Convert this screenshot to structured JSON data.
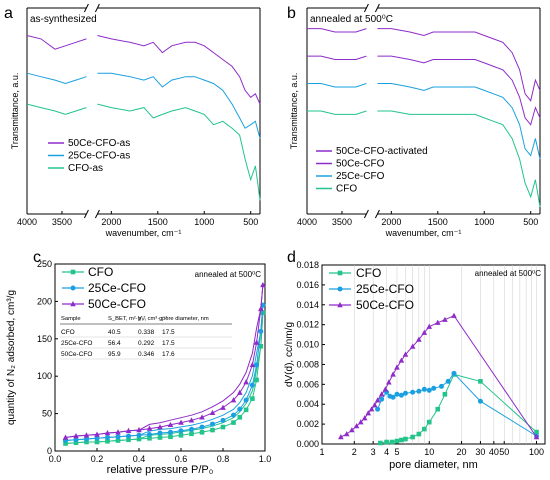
{
  "colors": {
    "purple": "#8e2bc9",
    "blue": "#1aa0e0",
    "green": "#22c48a",
    "axis": "#000000",
    "grid": "#cccccc"
  },
  "panels": [
    {
      "letter": "a",
      "annotation": "as-synthesized",
      "ylabel": "Transmittance, a.u.",
      "xlabel": "wavenumber, cm⁻¹",
      "xticks_left": [
        "4000",
        "3500"
      ],
      "xticks_right": [
        "2000",
        "1500",
        "1000",
        "500"
      ],
      "legend": [
        "50Ce-CFO-as",
        "25Ce-CFO-as",
        "CFO-as"
      ]
    },
    {
      "letter": "b",
      "annotation": "annealed at 500⁰C",
      "ylabel": "Transmittance, a.u.",
      "xlabel": "wavenumber, cm⁻¹",
      "xticks_left": [
        "4000",
        "3500"
      ],
      "xticks_right": [
        "2000",
        "1500",
        "1000",
        "500"
      ],
      "legend": [
        "50Ce-CFO-activated",
        "50Ce-CFO",
        "25Ce-CFO",
        "CFO"
      ]
    },
    {
      "letter": "c",
      "annotation": "annealed at 500⁰C",
      "ylabel": "quantity of N₂ adsorbed, cm³/g",
      "xlabel": "relative pressure P/P₀",
      "xticks": [
        "0.0",
        "0.2",
        "0.4",
        "0.6",
        "0.8",
        "1.0"
      ],
      "yticks": [
        "0",
        "50",
        "100",
        "150",
        "200",
        "250"
      ],
      "legend": [
        "CFO",
        "25Ce-CFO",
        "50Ce-CFO"
      ],
      "table": {
        "header": [
          "Sample",
          "S_BET, m²·g⁻¹",
          "Vₚ, cm³·g⁻¹",
          "pore diameter, nm"
        ],
        "rows": [
          [
            "CFO",
            "40.5",
            "0.338",
            "17.5"
          ],
          [
            "25Ce-CFO",
            "56.4",
            "0.292",
            "17.5"
          ],
          [
            "50Ce-CFO",
            "95.9",
            "0.346",
            "17.6"
          ]
        ]
      }
    },
    {
      "letter": "d",
      "annotation": "annealed at 500⁰C",
      "ylabel": "dV(d), cc/nm/g",
      "xlabel": "pore diameter, nm",
      "xticks": [
        "1",
        "2",
        "3",
        "4",
        "5",
        "10",
        "20",
        "30",
        "40",
        "50",
        "100"
      ],
      "yticks": [
        "0.000",
        "0.002",
        "0.004",
        "0.006",
        "0.008",
        "0.010",
        "0.012",
        "0.014",
        "0.016",
        "0.018"
      ],
      "legend": [
        "CFO",
        "25Ce-CFO",
        "50Ce-CFO"
      ]
    }
  ],
  "chart_data": [
    {
      "type": "line",
      "panel": "a",
      "xlim": [
        4000,
        400
      ],
      "series": [
        {
          "name": "50Ce-CFO-as",
          "color": "#8e2bc9",
          "x": [
            4000,
            3800,
            3600,
            3450,
            3300,
            3150,
            2150,
            2000,
            1800,
            1650,
            1550,
            1450,
            1350,
            1200,
            1100,
            1000,
            900,
            800,
            700,
            620,
            560,
            500,
            450,
            400
          ],
          "y": [
            5.2,
            5.1,
            4.8,
            4.9,
            5.0,
            5.1,
            5.2,
            5.1,
            5.0,
            4.9,
            5.0,
            4.7,
            4.9,
            5.0,
            5.0,
            4.9,
            4.7,
            4.5,
            4.3,
            4.0,
            3.6,
            3.4,
            3.5,
            3.2
          ]
        },
        {
          "name": "25Ce-CFO-as",
          "color": "#1aa0e0",
          "x": [
            4000,
            3800,
            3600,
            3450,
            3300,
            3150,
            2150,
            2000,
            1800,
            1650,
            1550,
            1450,
            1350,
            1200,
            1100,
            1000,
            900,
            800,
            700,
            620,
            560,
            500,
            450,
            400
          ],
          "y": [
            4.1,
            4.0,
            3.9,
            3.8,
            3.9,
            4.0,
            4.1,
            4.1,
            4.0,
            3.9,
            4.0,
            3.7,
            3.9,
            4.0,
            4.0,
            3.9,
            3.8,
            3.6,
            3.2,
            2.8,
            2.5,
            2.6,
            2.7,
            2.2
          ]
        },
        {
          "name": "CFO-as",
          "color": "#22c48a",
          "x": [
            4000,
            3800,
            3600,
            3450,
            3300,
            3150,
            2150,
            2000,
            1800,
            1650,
            1550,
            1450,
            1350,
            1200,
            1100,
            1000,
            900,
            800,
            700,
            620,
            560,
            500,
            450,
            400
          ],
          "y": [
            3.2,
            3.1,
            3.0,
            2.9,
            3.0,
            3.1,
            3.2,
            3.1,
            3.0,
            3.1,
            2.8,
            2.9,
            3.0,
            3.1,
            3.0,
            2.9,
            2.6,
            2.7,
            2.5,
            2.3,
            1.6,
            1.0,
            1.4,
            0.4
          ]
        }
      ]
    },
    {
      "type": "line",
      "panel": "b",
      "xlim": [
        4000,
        400
      ],
      "series": [
        {
          "name": "50Ce-CFO-activated",
          "color": "#8e2bc9",
          "x": [
            4000,
            3800,
            3600,
            3450,
            3300,
            3150,
            2150,
            2000,
            1800,
            1650,
            1550,
            1450,
            1350,
            1200,
            1100,
            1000,
            900,
            800,
            700,
            620,
            560,
            500,
            450,
            400
          ],
          "y": [
            5.4,
            5.4,
            5.3,
            5.3,
            5.3,
            5.4,
            5.4,
            5.4,
            5.3,
            5.2,
            5.3,
            5.3,
            5.3,
            5.3,
            5.3,
            5.2,
            5.1,
            5.0,
            4.7,
            4.2,
            3.5,
            3.3,
            3.9,
            3.6
          ]
        },
        {
          "name": "50Ce-CFO",
          "color": "#8e2bc9",
          "x": [
            4000,
            3800,
            3600,
            3450,
            3300,
            3150,
            2150,
            2000,
            1800,
            1650,
            1550,
            1450,
            1350,
            1200,
            1100,
            1000,
            900,
            800,
            700,
            620,
            560,
            500,
            450,
            400
          ],
          "y": [
            4.6,
            4.6,
            4.5,
            4.5,
            4.5,
            4.6,
            4.6,
            4.6,
            4.5,
            4.4,
            4.5,
            4.5,
            4.5,
            4.5,
            4.5,
            4.4,
            4.3,
            4.2,
            3.9,
            3.4,
            2.8,
            2.6,
            3.1,
            2.8
          ]
        },
        {
          "name": "25Ce-CFO",
          "color": "#1aa0e0",
          "x": [
            4000,
            3800,
            3600,
            3450,
            3300,
            3150,
            2150,
            2000,
            1800,
            1650,
            1550,
            1450,
            1350,
            1200,
            1100,
            1000,
            900,
            800,
            700,
            620,
            560,
            500,
            450,
            400
          ],
          "y": [
            3.8,
            3.8,
            3.7,
            3.7,
            3.7,
            3.8,
            3.8,
            3.8,
            3.7,
            3.6,
            3.7,
            3.7,
            3.7,
            3.7,
            3.7,
            3.6,
            3.5,
            3.4,
            3.1,
            2.6,
            1.9,
            1.7,
            2.2,
            1.6
          ]
        },
        {
          "name": "CFO",
          "color": "#22c48a",
          "x": [
            4000,
            3800,
            3600,
            3450,
            3300,
            3150,
            2150,
            2000,
            1800,
            1650,
            1550,
            1450,
            1350,
            1200,
            1100,
            1000,
            900,
            800,
            700,
            620,
            560,
            500,
            450,
            400
          ],
          "y": [
            3.0,
            3.0,
            2.9,
            2.9,
            2.9,
            3.0,
            3.0,
            3.0,
            2.9,
            2.9,
            2.9,
            2.9,
            2.9,
            2.9,
            2.9,
            2.8,
            2.7,
            2.6,
            2.2,
            1.6,
            0.9,
            0.5,
            1.0,
            0.2
          ]
        }
      ]
    },
    {
      "type": "line",
      "panel": "c",
      "xlim": [
        0,
        1
      ],
      "ylim": [
        0,
        250
      ],
      "series": [
        {
          "name": "CFO",
          "color": "#22c48a",
          "marker": "square",
          "x": [
            0.05,
            0.1,
            0.15,
            0.2,
            0.25,
            0.3,
            0.35,
            0.4,
            0.45,
            0.5,
            0.55,
            0.6,
            0.65,
            0.7,
            0.75,
            0.8,
            0.85,
            0.88,
            0.91,
            0.94,
            0.96,
            0.98,
            0.99
          ],
          "y": [
            10,
            11,
            12,
            12,
            13,
            14,
            15,
            16,
            17,
            18,
            19,
            21,
            23,
            25,
            28,
            32,
            38,
            45,
            55,
            70,
            95,
            140,
            185
          ]
        },
        {
          "name": "25Ce-CFO",
          "color": "#1aa0e0",
          "marker": "circle",
          "x": [
            0.05,
            0.1,
            0.15,
            0.2,
            0.25,
            0.3,
            0.35,
            0.4,
            0.45,
            0.5,
            0.55,
            0.6,
            0.65,
            0.7,
            0.75,
            0.8,
            0.85,
            0.88,
            0.91,
            0.94,
            0.96,
            0.98,
            0.99
          ],
          "y": [
            14,
            15,
            16,
            17,
            18,
            19,
            20,
            21,
            22,
            24,
            25,
            27,
            29,
            32,
            36,
            41,
            48,
            56,
            68,
            88,
            115,
            160,
            195
          ]
        },
        {
          "name": "50Ce-CFO",
          "color": "#8e2bc9",
          "marker": "triangle",
          "x": [
            0.05,
            0.1,
            0.15,
            0.2,
            0.25,
            0.3,
            0.35,
            0.4,
            0.45,
            0.5,
            0.55,
            0.6,
            0.65,
            0.7,
            0.75,
            0.8,
            0.85,
            0.88,
            0.91,
            0.94,
            0.96,
            0.98,
            0.99
          ],
          "y": [
            18,
            20,
            21,
            22,
            24,
            25,
            27,
            28,
            30,
            32,
            35,
            38,
            41,
            45,
            51,
            58,
            68,
            78,
            92,
            115,
            145,
            190,
            222
          ]
        }
      ]
    },
    {
      "type": "line",
      "panel": "d",
      "xscale": "log",
      "xlim": [
        1,
        120
      ],
      "ylim": [
        0,
        0.018
      ],
      "series": [
        {
          "name": "CFO",
          "color": "#22c48a",
          "marker": "square",
          "x": [
            3.5,
            4,
            4.5,
            5,
            5.5,
            6,
            7,
            8,
            9,
            10,
            12,
            14,
            17,
            30,
            100
          ],
          "y": [
            0.0001,
            0.0002,
            0.0002,
            0.0003,
            0.0004,
            0.0005,
            0.0007,
            0.001,
            0.0015,
            0.0022,
            0.0035,
            0.005,
            0.007,
            0.0063,
            0.0012
          ]
        },
        {
          "name": "25Ce-CFO",
          "color": "#1aa0e0",
          "marker": "circle",
          "x": [
            3.3,
            3.6,
            4,
            4.3,
            4.6,
            5,
            5.5,
            6,
            7,
            8,
            9,
            10,
            11,
            13,
            15,
            17,
            30,
            100
          ],
          "y": [
            0.0035,
            0.0045,
            0.0052,
            0.0048,
            0.0047,
            0.005,
            0.0049,
            0.0051,
            0.0052,
            0.0053,
            0.0055,
            0.0054,
            0.0056,
            0.0058,
            0.0063,
            0.0071,
            0.0043,
            0.0008
          ]
        },
        {
          "name": "50Ce-CFO",
          "color": "#8e2bc9",
          "marker": "triangle",
          "x": [
            1.5,
            1.7,
            1.9,
            2.1,
            2.3,
            2.5,
            2.7,
            2.9,
            3.1,
            3.3,
            3.6,
            3.9,
            4.2,
            4.6,
            5,
            5.5,
            6,
            7,
            8,
            9,
            10,
            12,
            14,
            17,
            100
          ],
          "y": [
            0.0007,
            0.001,
            0.0014,
            0.0018,
            0.0022,
            0.0026,
            0.0031,
            0.0035,
            0.0039,
            0.0044,
            0.005,
            0.0055,
            0.0062,
            0.007,
            0.0077,
            0.0084,
            0.009,
            0.0098,
            0.0105,
            0.0112,
            0.0118,
            0.0122,
            0.0125,
            0.0129,
            0.0007
          ]
        }
      ]
    }
  ]
}
